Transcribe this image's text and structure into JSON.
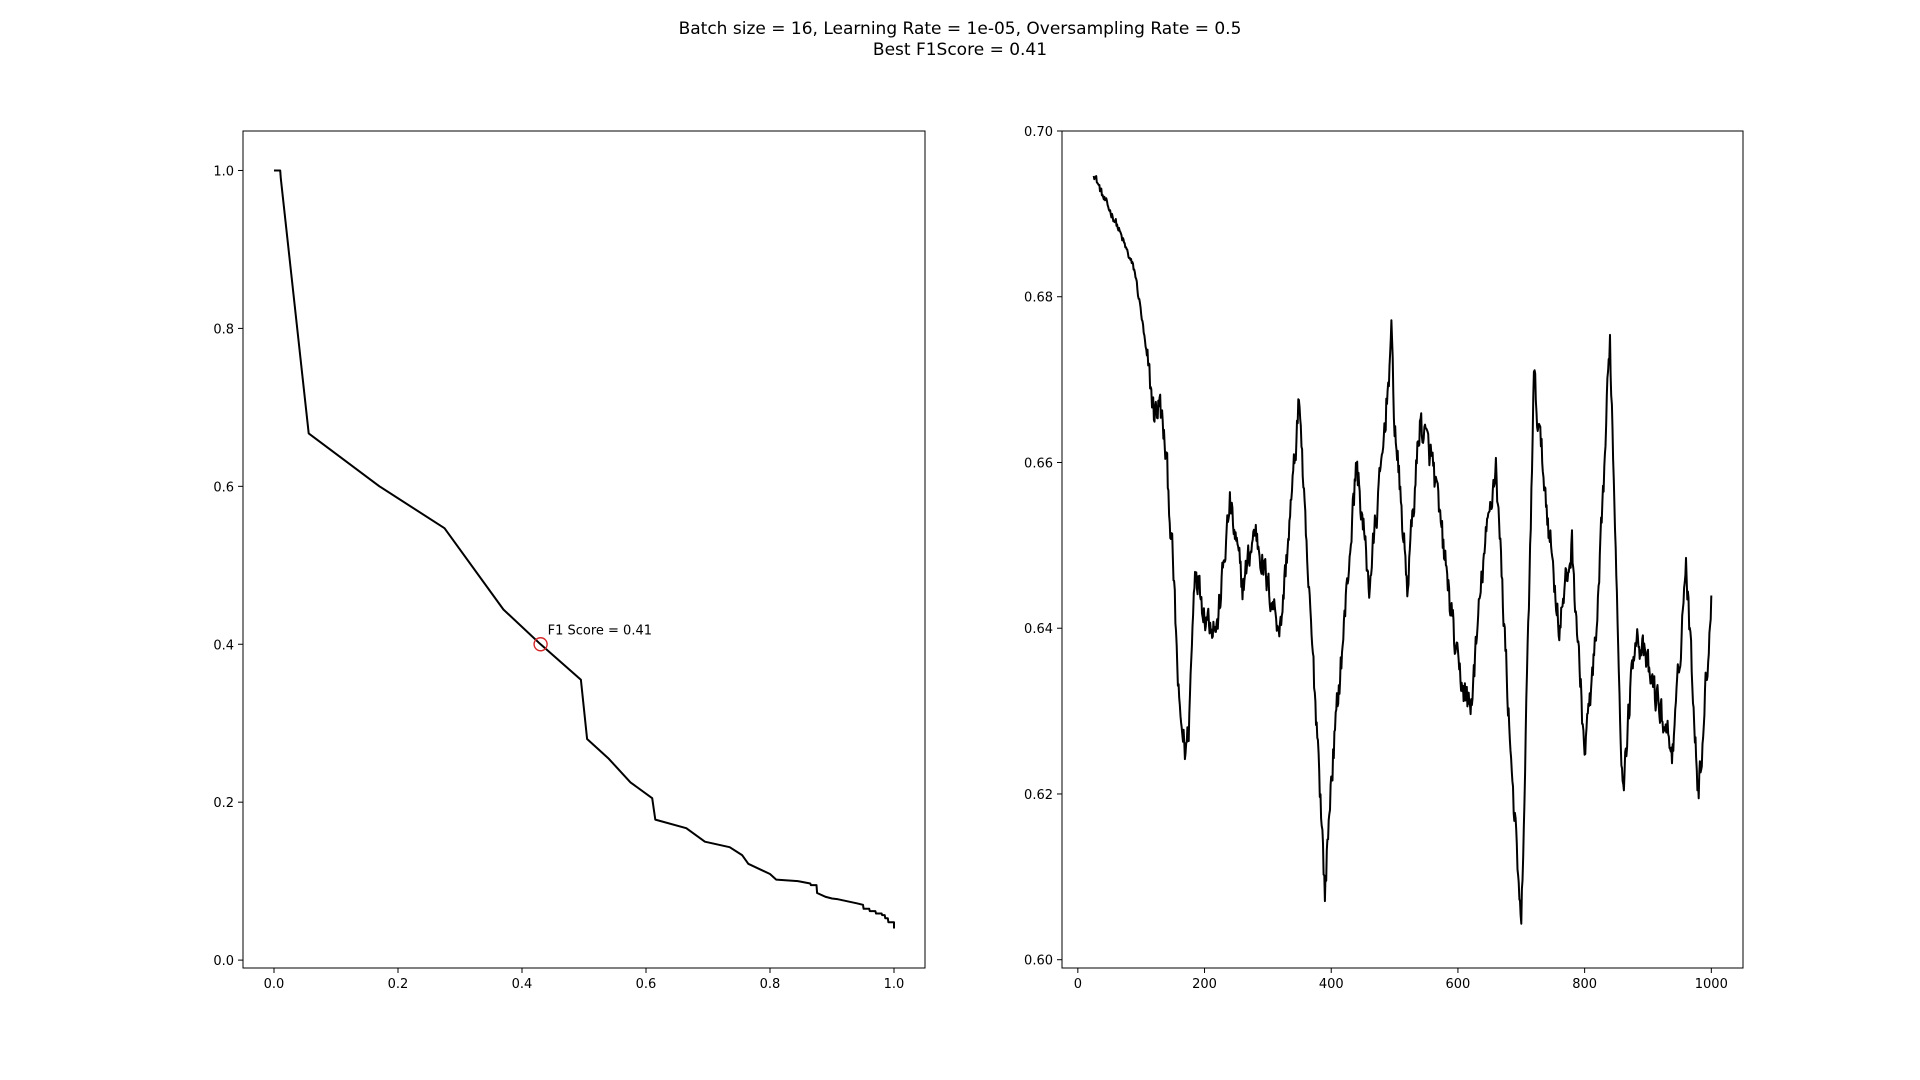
{
  "figure": {
    "title_line1": "Batch size = 16, Learning Rate = 1e-05, Oversampling Rate = 0.5",
    "title_line2": "Best F1Score = 0.41"
  },
  "chart_data": [
    {
      "type": "line",
      "title": "",
      "xlabel": "",
      "ylabel": "",
      "xlim": [
        -0.05,
        1.05
      ],
      "ylim": [
        -0.01,
        1.05
      ],
      "xticks": [
        0.0,
        0.2,
        0.4,
        0.6,
        0.8,
        1.0
      ],
      "yticks": [
        0.0,
        0.2,
        0.4,
        0.6,
        0.8,
        1.0
      ],
      "xtick_labels": [
        "0.0",
        "0.2",
        "0.4",
        "0.6",
        "0.8",
        "1.0"
      ],
      "ytick_labels": [
        "0.0",
        "0.2",
        "0.4",
        "0.6",
        "0.8",
        "1.0"
      ],
      "line_color": "#000000",
      "series": [
        {
          "x": [
            0.0,
            0.01,
            0.011,
            0.056,
            0.17,
            0.275,
            0.37,
            0.43,
            0.495,
            0.505,
            0.54,
            0.575,
            0.61,
            0.615,
            0.665,
            0.695,
            0.735,
            0.755,
            0.765,
            0.8,
            0.81,
            0.845,
            0.865,
            0.866,
            0.875,
            0.876,
            0.89,
            0.9,
            0.91,
            0.94,
            0.95,
            0.951,
            0.96,
            0.961,
            0.97,
            0.971,
            0.98,
            0.981,
            0.985,
            0.986,
            0.99,
            0.991,
            1.0,
            1.0
          ],
          "y": [
            1.0,
            1.0,
            0.99,
            0.667,
            0.6,
            0.547,
            0.444,
            0.4,
            0.355,
            0.28,
            0.255,
            0.225,
            0.205,
            0.178,
            0.167,
            0.15,
            0.143,
            0.133,
            0.122,
            0.109,
            0.102,
            0.1,
            0.097,
            0.095,
            0.095,
            0.085,
            0.08,
            0.078,
            0.077,
            0.072,
            0.07,
            0.065,
            0.065,
            0.062,
            0.062,
            0.059,
            0.059,
            0.057,
            0.057,
            0.053,
            0.053,
            0.048,
            0.048,
            0.04
          ]
        }
      ],
      "marker": {
        "x": 0.43,
        "y": 0.4,
        "color": "#d62728",
        "label": "F1 Score = 0.41"
      }
    },
    {
      "type": "line",
      "title": "",
      "xlabel": "",
      "ylabel": "",
      "xlim": [
        -25,
        1050
      ],
      "ylim": [
        0.599,
        0.7
      ],
      "xticks": [
        0,
        200,
        400,
        600,
        800,
        1000
      ],
      "yticks": [
        0.6,
        0.62,
        0.64,
        0.66,
        0.68,
        0.7
      ],
      "xtick_labels": [
        "0",
        "200",
        "400",
        "600",
        "800",
        "1000"
      ],
      "ytick_labels": [
        "0.60",
        "0.62",
        "0.64",
        "0.66",
        "0.68",
        "0.70"
      ],
      "line_color": "#000000",
      "noise_seed": 12345,
      "noise_amplitude": 0.0032,
      "x_range": [
        25,
        1000
      ],
      "anchor_points": {
        "x": [
          25,
          40,
          60,
          80,
          90,
          100,
          110,
          120,
          130,
          140,
          150,
          160,
          170,
          175,
          185,
          200,
          220,
          240,
          260,
          280,
          300,
          320,
          340,
          350,
          360,
          380,
          390,
          400,
          420,
          440,
          460,
          480,
          495,
          500,
          520,
          540,
          560,
          580,
          600,
          620,
          640,
          660,
          670,
          680,
          700,
          720,
          740,
          760,
          780,
          800,
          820,
          840,
          860,
          880,
          900,
          920,
          940,
          960,
          980,
          1000
        ],
        "y": [
          0.695,
          0.692,
          0.689,
          0.685,
          0.683,
          0.678,
          0.672,
          0.666,
          0.667,
          0.66,
          0.648,
          0.63,
          0.625,
          0.628,
          0.648,
          0.642,
          0.64,
          0.655,
          0.645,
          0.652,
          0.645,
          0.64,
          0.658,
          0.668,
          0.65,
          0.625,
          0.608,
          0.622,
          0.64,
          0.66,
          0.645,
          0.66,
          0.675,
          0.665,
          0.645,
          0.665,
          0.66,
          0.648,
          0.635,
          0.63,
          0.648,
          0.66,
          0.645,
          0.63,
          0.603,
          0.67,
          0.655,
          0.64,
          0.65,
          0.625,
          0.64,
          0.675,
          0.62,
          0.64,
          0.635,
          0.63,
          0.625,
          0.648,
          0.62,
          0.643
        ]
      }
    }
  ]
}
